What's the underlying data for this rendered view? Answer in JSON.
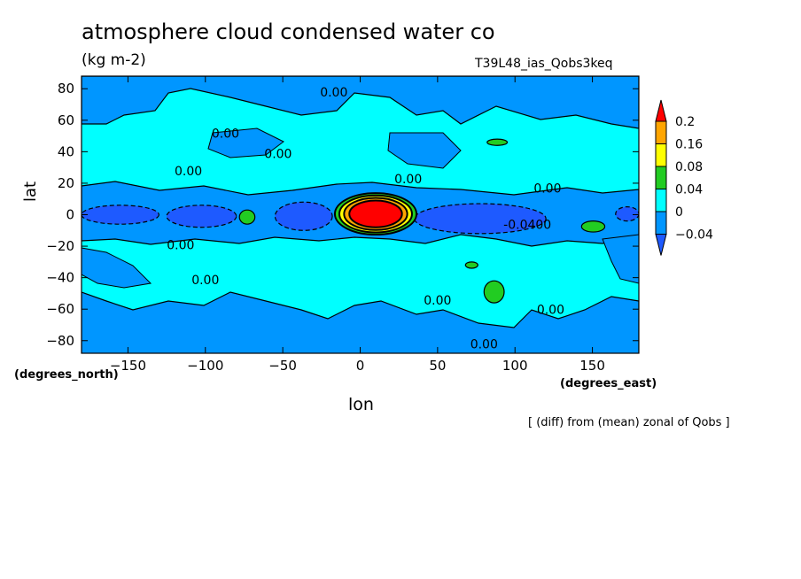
{
  "header": {
    "title": "atmosphere cloud condensed water co",
    "units": "(kg m-2)",
    "run_id": "T39L48_ias_Qobs3keq"
  },
  "axes": {
    "x_label": "lon",
    "y_label": "lat",
    "x_units": "(degrees_east)",
    "y_units": "(degrees_north)"
  },
  "footer_note": "[ (diff) from (mean) zonal of Qobs ]",
  "chart_data": {
    "type": "heatmap",
    "title": "atmosphere cloud condensed water co",
    "xlabel": "lon",
    "ylabel": "lat",
    "xlim": [
      -180,
      180
    ],
    "ylim": [
      -88,
      88
    ],
    "x_ticks": [
      -150,
      -100,
      -50,
      0,
      50,
      100,
      150
    ],
    "y_ticks": [
      -80,
      -60,
      -40,
      -20,
      0,
      20,
      40,
      60,
      80
    ],
    "colorbar": {
      "levels": [
        -0.04,
        0,
        0.04,
        0.08,
        0.16,
        0.2
      ],
      "labels": [
        "-0.04",
        "0",
        "0.04",
        "0.08",
        "0.16",
        "0.2"
      ],
      "colors": [
        "#1e5aff",
        "#0096ff",
        "#00ffff",
        "#22cc22",
        "#ffff00",
        "#ffa500",
        "#ff0000"
      ]
    },
    "contour_labels": [
      {
        "text": "0.00",
        "lon": -17,
        "lat": 75
      },
      {
        "text": "0.00",
        "lon": -87,
        "lat": 49
      },
      {
        "text": "0.00",
        "lon": -53,
        "lat": 36
      },
      {
        "text": "0.00",
        "lon": -111,
        "lat": 25
      },
      {
        "text": "0.00",
        "lon": 31,
        "lat": 20
      },
      {
        "text": "0.00",
        "lon": 121,
        "lat": 14
      },
      {
        "text": "-0.0400",
        "lon": 108,
        "lat": -9
      },
      {
        "text": "0.00",
        "lon": -116,
        "lat": -22
      },
      {
        "text": "0.00",
        "lon": -100,
        "lat": -44
      },
      {
        "text": "0.00",
        "lon": 50,
        "lat": -57
      },
      {
        "text": "0.00",
        "lon": 123,
        "lat": -63
      },
      {
        "text": "0.00",
        "lon": 80,
        "lat": -85
      }
    ],
    "regions": [
      {
        "level": "-0.04",
        "lon": [
          -180,
          -130
        ],
        "lat": [
          -6,
          6
        ]
      },
      {
        "level": "-0.04",
        "lon": [
          -125,
          -80
        ],
        "lat": [
          -8,
          6
        ]
      },
      {
        "level": "-0.04",
        "lon": [
          -55,
          -18
        ],
        "lat": [
          -10,
          8
        ]
      },
      {
        "level": "-0.04",
        "lon": [
          35,
          120
        ],
        "lat": [
          -12,
          7
        ]
      },
      {
        "level": "-0.04",
        "lon": [
          165,
          180
        ],
        "lat": [
          -4,
          5
        ]
      },
      {
        "level": "0.2",
        "lon": [
          -7,
          27
        ],
        "lat": [
          -8,
          9
        ]
      },
      {
        "level": "0.04",
        "lon": [
          82,
          95
        ],
        "lat": [
          44,
          48
        ]
      },
      {
        "level": "0.04",
        "lon": [
          -78,
          -68
        ],
        "lat": [
          -6,
          3
        ]
      },
      {
        "level": "0.04",
        "lon": [
          143,
          158
        ],
        "lat": [
          -11,
          -4
        ]
      },
      {
        "level": "0.04",
        "lon": [
          80,
          93
        ],
        "lat": [
          -56,
          -42
        ]
      },
      {
        "level": "0.04",
        "lon": [
          68,
          76
        ],
        "lat": [
          -34,
          -30
        ]
      }
    ]
  }
}
